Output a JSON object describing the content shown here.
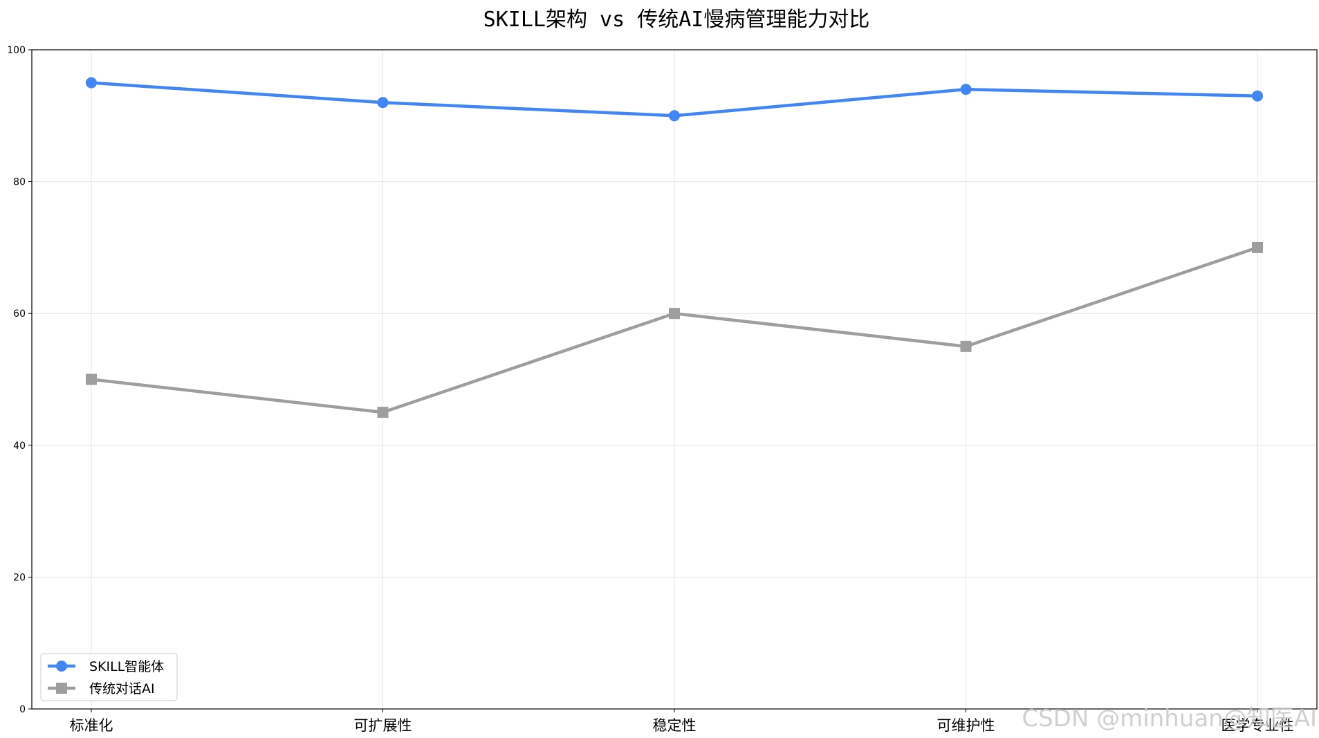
{
  "chart_data": {
    "type": "line",
    "title": "SKILL架构 vs 传统AI慢病管理能力对比",
    "categories": [
      "标准化",
      "可扩展性",
      "稳定性",
      "可维护性",
      "医学专业性"
    ],
    "series": [
      {
        "name": "SKILL智能体",
        "values": [
          95,
          92,
          90,
          94,
          93
        ],
        "color": "#4285f4",
        "marker": "circle"
      },
      {
        "name": "传统对话AI",
        "values": [
          50,
          45,
          60,
          55,
          70
        ],
        "color": "#9e9e9e",
        "marker": "square"
      }
    ],
    "ylim": [
      0,
      100
    ],
    "yticks": [
      "0",
      "20",
      "40",
      "60",
      "80",
      "100"
    ],
    "grid": true,
    "legend_position": "lower-left"
  },
  "watermark": "CSDN @minhuan@知医AI"
}
